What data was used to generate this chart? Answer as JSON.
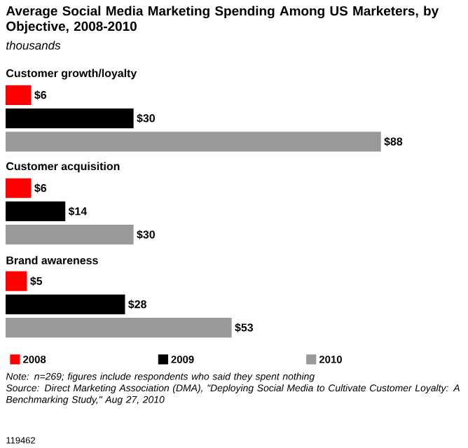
{
  "chart_data": {
    "type": "bar",
    "orientation": "horizontal",
    "title": "Average Social Media Marketing Spending Among US Marketers, by Objective, 2008-2010",
    "subtitle": "thousands",
    "categories": [
      "Customer growth/loyalty",
      "Customer acquisition",
      "Brand awareness"
    ],
    "series": [
      {
        "name": "2008",
        "color": "#ff0000",
        "values": [
          6,
          6,
          5
        ],
        "value_labels": [
          "$6",
          "$6",
          "$5"
        ]
      },
      {
        "name": "2009",
        "color": "#000000",
        "values": [
          30,
          14,
          28
        ],
        "value_labels": [
          "$30",
          "$14",
          "$28"
        ]
      },
      {
        "name": "2010",
        "color": "#999999",
        "values": [
          88,
          30,
          53
        ],
        "value_labels": [
          "$88",
          "$30",
          "$53"
        ]
      }
    ],
    "legend": "bottom",
    "annotations": [
      "Note: n=269; figures include respondents who said they spent nothing",
      "Source: Direct Marketing Association (DMA), \"Deploying Social Media to Cultivate Customer Loyalty: A Benchmarking Study,\" Aug 27, 2010",
      "119462"
    ]
  }
}
